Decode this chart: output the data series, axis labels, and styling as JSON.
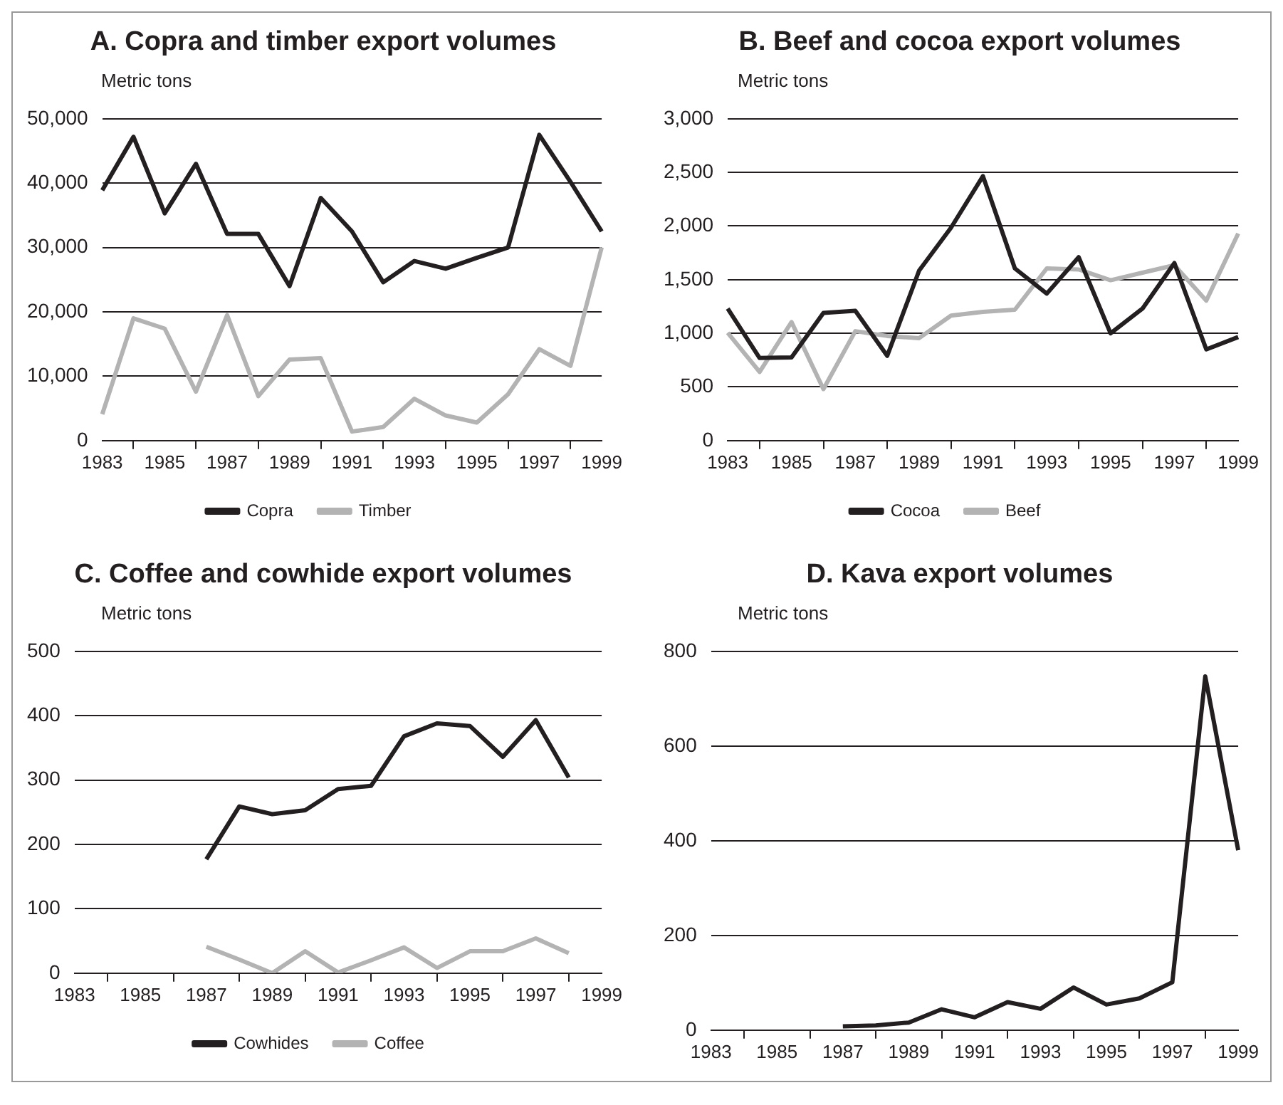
{
  "chart_data": [
    {
      "type": "line",
      "title": "A. Copra and timber export volumes",
      "ylabel": "Metric tons",
      "categories": [
        "1983",
        null,
        "1985",
        null,
        "1987",
        null,
        "1989",
        null,
        "1991",
        null,
        "1993",
        null,
        "1995",
        null,
        "1997",
        null,
        "1999"
      ],
      "ylim": [
        0,
        50000
      ],
      "yticks": [
        {
          "value": 0,
          "label": "0"
        },
        {
          "value": 10000,
          "label": "10,000"
        },
        {
          "value": 20000,
          "label": "20,000"
        },
        {
          "value": 30000,
          "label": "30,000"
        },
        {
          "value": 40000,
          "label": "40,000"
        },
        {
          "value": 50000,
          "label": "50,000"
        }
      ],
      "grid": "y",
      "legend": "bottom",
      "series": [
        {
          "name": "Copra",
          "color": "#231f20",
          "values": [
            38900,
            47200,
            35300,
            43000,
            32100,
            32100,
            24000,
            37700,
            32500,
            24600,
            27900,
            26700,
            28400,
            30000,
            47500,
            40200,
            32500
          ]
        },
        {
          "name": "Timber",
          "color": "#b3b3b3",
          "values": [
            4100,
            19000,
            17400,
            7600,
            19500,
            6900,
            12600,
            12800,
            1400,
            2100,
            6500,
            3900,
            2800,
            7200,
            14200,
            11600,
            30000
          ]
        }
      ]
    },
    {
      "type": "line",
      "title": "B. Beef and cocoa export volumes",
      "ylabel": "Metric tons",
      "categories": [
        "1983",
        null,
        "1985",
        null,
        "1987",
        null,
        "1989",
        null,
        "1991",
        null,
        "1993",
        null,
        "1995",
        null,
        "1997",
        null,
        "1999"
      ],
      "ylim": [
        0,
        3000
      ],
      "yticks": [
        0,
        500,
        {
          "value": 1000,
          "label": "1,000"
        },
        {
          "value": 1500,
          "label": "1,500"
        },
        {
          "value": 2000,
          "label": "2,000"
        },
        {
          "value": 2500,
          "label": "2,500"
        },
        {
          "value": 3000,
          "label": "3,000"
        }
      ],
      "grid": "y",
      "legend": "bottom",
      "series": [
        {
          "name": "Cocoa",
          "color": "#231f20",
          "values": [
            1230,
            770,
            775,
            1190,
            1210,
            790,
            1585,
            1985,
            2465,
            1605,
            1370,
            1710,
            1000,
            1230,
            1655,
            850,
            965
          ]
        },
        {
          "name": "Beef",
          "color": "#b3b3b3",
          "values": [
            1005,
            640,
            1105,
            480,
            1020,
            975,
            955,
            1165,
            1200,
            1220,
            1605,
            1595,
            1495,
            1565,
            1635,
            1305,
            1930
          ]
        }
      ]
    },
    {
      "type": "line",
      "title": "C. Coffee and cowhide export volumes",
      "ylabel": "Metric tons",
      "categories": [
        "1983",
        null,
        "1985",
        null,
        "1987",
        null,
        "1989",
        null,
        "1991",
        null,
        "1993",
        null,
        "1995",
        null,
        "1997",
        null,
        "1999"
      ],
      "ylim": [
        0,
        500
      ],
      "yticks": [
        0,
        100,
        200,
        300,
        400,
        500
      ],
      "grid": "y",
      "legend": "bottom",
      "series": [
        {
          "name": "Cowhides",
          "color": "#231f20",
          "values": [
            null,
            null,
            null,
            null,
            177,
            259,
            247,
            253,
            286,
            291,
            368,
            388,
            384,
            336,
            393,
            304,
            null
          ]
        },
        {
          "name": "Coffee",
          "color": "#b3b3b3",
          "values": [
            null,
            null,
            null,
            null,
            41,
            21,
            0,
            34,
            1,
            20,
            40,
            8,
            34,
            34,
            54,
            31,
            null
          ]
        }
      ]
    },
    {
      "type": "line",
      "title": "D. Kava export volumes",
      "ylabel": "Metric tons",
      "categories": [
        "1983",
        null,
        "1985",
        null,
        "1987",
        null,
        "1989",
        null,
        "1991",
        null,
        "1993",
        null,
        "1995",
        null,
        "1997",
        null,
        "1999"
      ],
      "ylim": [
        0,
        800
      ],
      "yticks": [
        0,
        200,
        400,
        600,
        800
      ],
      "grid": "y",
      "series": [
        {
          "color": "#231f20",
          "values": [
            null,
            null,
            null,
            null,
            8,
            10,
            16,
            44,
            27,
            59,
            45,
            90,
            54,
            67,
            101,
            747,
            380
          ]
        }
      ]
    }
  ]
}
